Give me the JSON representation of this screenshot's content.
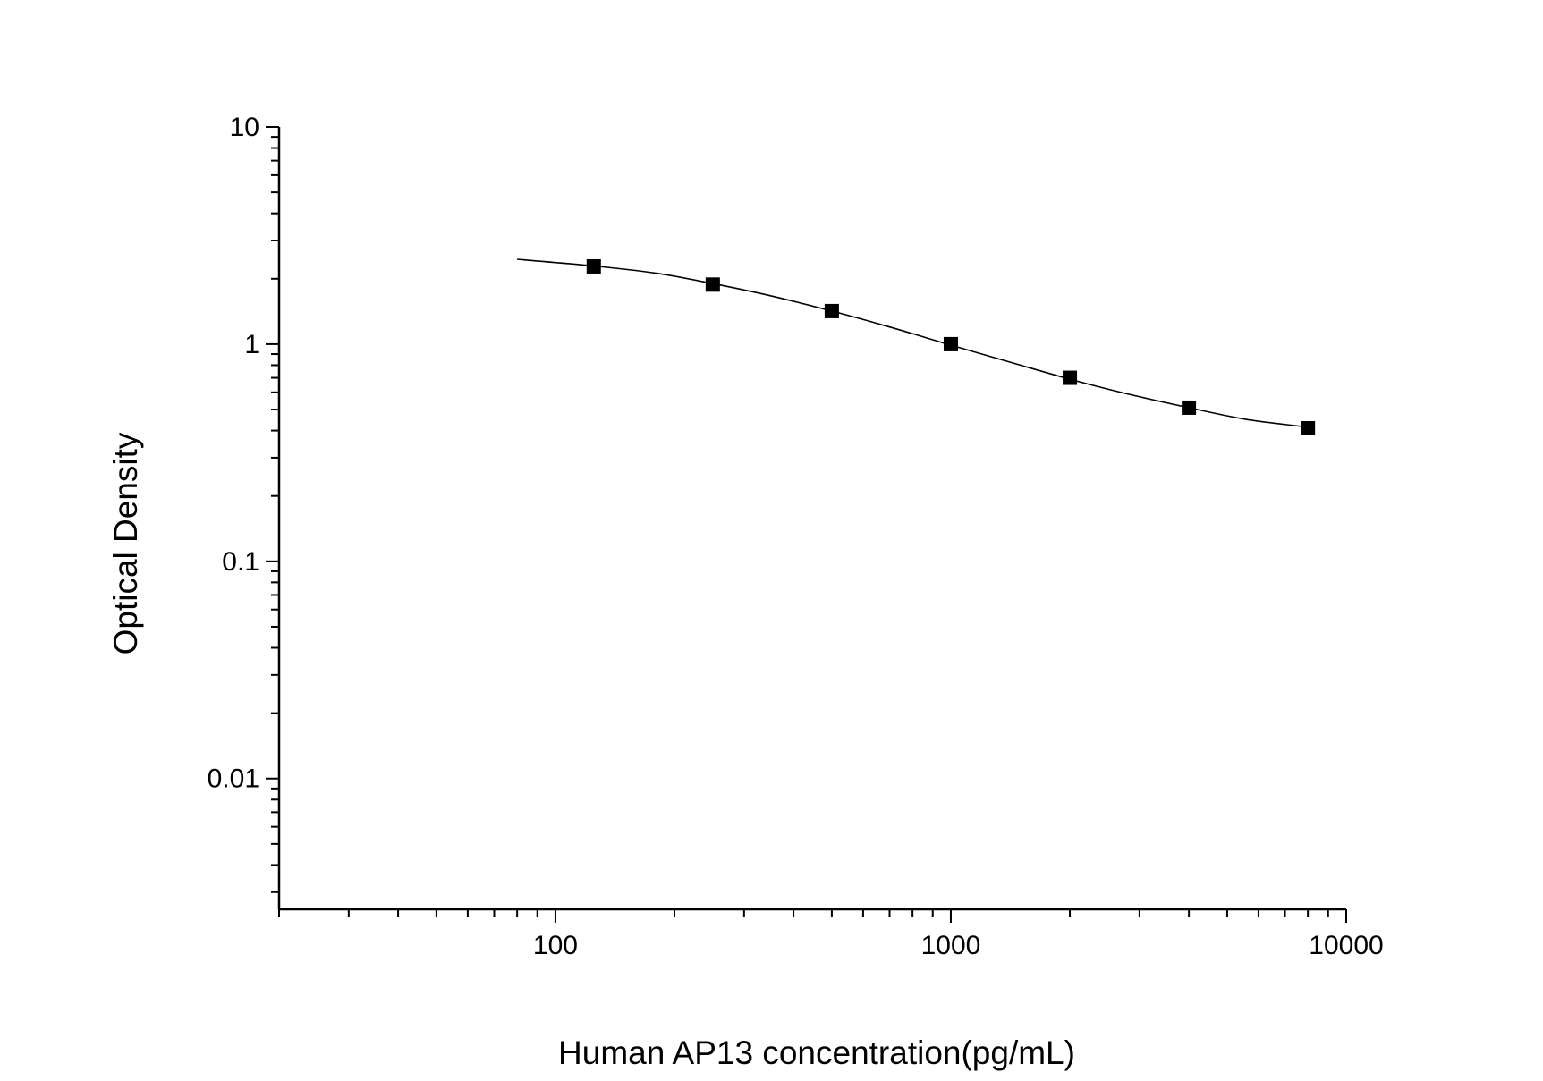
{
  "chart_data": {
    "type": "scatter",
    "title": "",
    "xlabel": "Human AP13 concentration(pg/mL)",
    "ylabel": "Optical Density",
    "x_scale": "log",
    "y_scale": "log",
    "xlim": [
      20,
      10000
    ],
    "ylim": [
      0.0025,
      10
    ],
    "x_ticks": [
      {
        "value": 100,
        "label": "100"
      },
      {
        "value": 1000,
        "label": "1000"
      },
      {
        "value": 10000,
        "label": "10000"
      }
    ],
    "y_ticks": [
      {
        "value": 10,
        "label": "10"
      },
      {
        "value": 1,
        "label": "1"
      },
      {
        "value": 0.1,
        "label": "0.1"
      },
      {
        "value": 0.01,
        "label": "0.01"
      }
    ],
    "grid": false,
    "legend": "none",
    "series": [
      {
        "marker": "square",
        "color": "#000000",
        "points": [
          {
            "x": 125,
            "y": 2.28
          },
          {
            "x": 250,
            "y": 1.88
          },
          {
            "x": 500,
            "y": 1.42
          },
          {
            "x": 1000,
            "y": 1.0
          },
          {
            "x": 2000,
            "y": 0.7
          },
          {
            "x": 4000,
            "y": 0.51
          },
          {
            "x": 8000,
            "y": 0.41
          }
        ]
      }
    ],
    "fit_curve": {
      "type": "line",
      "color": "#000000",
      "points": [
        {
          "x": 80,
          "y": 2.46
        },
        {
          "x": 125,
          "y": 2.29
        },
        {
          "x": 180,
          "y": 2.12
        },
        {
          "x": 250,
          "y": 1.9
        },
        {
          "x": 350,
          "y": 1.67
        },
        {
          "x": 500,
          "y": 1.42
        },
        {
          "x": 700,
          "y": 1.2
        },
        {
          "x": 1000,
          "y": 0.99
        },
        {
          "x": 1400,
          "y": 0.83
        },
        {
          "x": 2000,
          "y": 0.69
        },
        {
          "x": 2800,
          "y": 0.59
        },
        {
          "x": 4000,
          "y": 0.51
        },
        {
          "x": 5600,
          "y": 0.45
        },
        {
          "x": 8000,
          "y": 0.415
        }
      ]
    }
  }
}
